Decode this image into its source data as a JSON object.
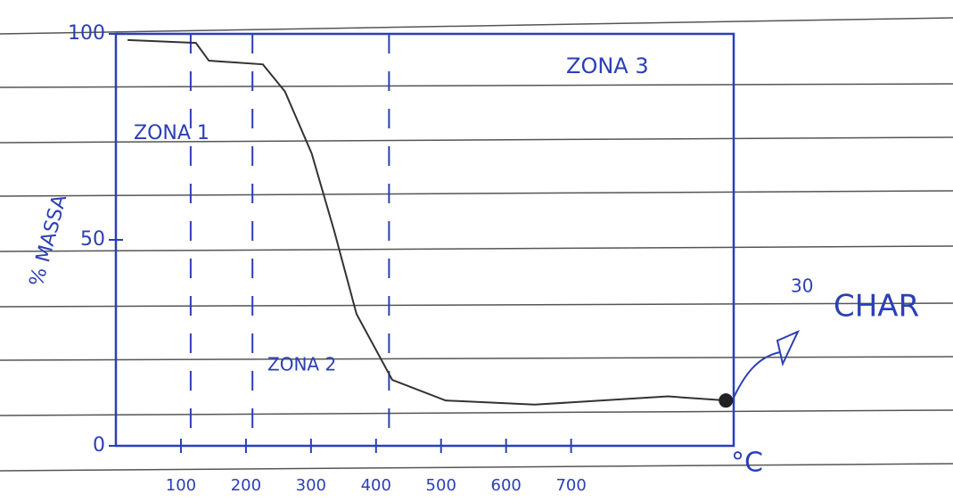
{
  "chart_data": {
    "type": "line",
    "x": [
      18,
      123,
      143,
      226,
      260,
      301,
      336,
      370,
      425,
      507,
      644,
      849,
      938
    ],
    "series": [
      {
        "color": "#333333",
        "values": [
          98.5,
          97.8,
          93.5,
          92.6,
          86,
          71,
          52,
          32,
          16,
          11,
          10,
          12,
          11
        ]
      }
    ],
    "xlim": [
      0,
      950
    ],
    "ylim": [
      0,
      100
    ],
    "xticks": [
      100,
      200,
      300,
      400,
      500,
      600,
      700
    ],
    "yticks": [
      0,
      50,
      100
    ],
    "x_label": "°C",
    "y_label": "% MASSA",
    "zone_dividers": [
      115,
      210,
      420
    ],
    "annotations": [
      "ZONA 1",
      "ZONA 2",
      "ZONA 3",
      "30",
      "CHAR"
    ],
    "axis_color": "#2b3fb5"
  }
}
